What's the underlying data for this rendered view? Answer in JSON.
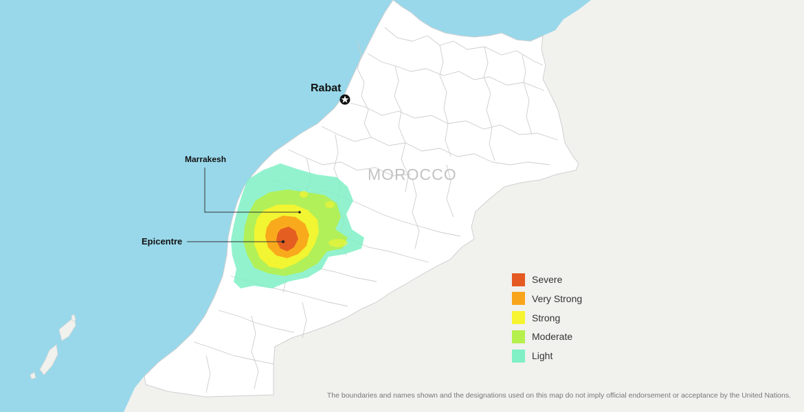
{
  "map": {
    "country_label": "MOROCCO",
    "capital": {
      "name": "Rabat",
      "icon": "star-in-circle-icon"
    },
    "callouts": [
      {
        "id": "marrakesh",
        "text": "Marrakesh"
      },
      {
        "id": "epicentre",
        "text": "Epicentre"
      }
    ]
  },
  "legend": {
    "items": [
      {
        "label": "Severe",
        "color": "#e45a22"
      },
      {
        "label": "Very Strong",
        "color": "#f9a51b"
      },
      {
        "label": "Strong",
        "color": "#f6f430"
      },
      {
        "label": "Moderate",
        "color": "#b5f04c"
      },
      {
        "label": "Light",
        "color": "#7ff0c6"
      }
    ]
  },
  "colors": {
    "sea": "#99d8ea",
    "land": "#ffffff",
    "neighbor_land": "#f1f1ee",
    "borders": "#c8c8c8"
  },
  "disclaimer": "The boundaries and names shown and the designations used on this map do not imply official endorsement or acceptance by the United Nations."
}
